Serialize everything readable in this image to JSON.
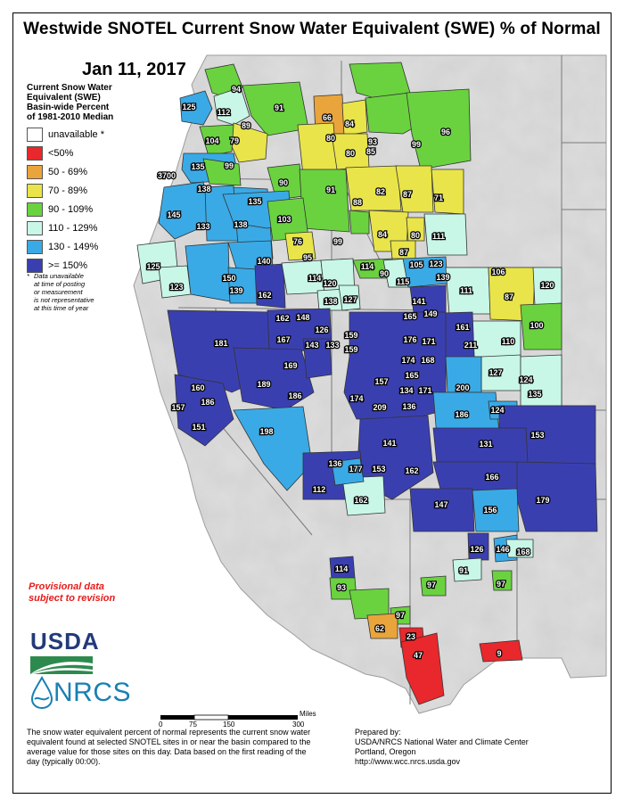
{
  "title": "Westwide SNOTEL Current Snow Water Equivalent (SWE) % of Normal",
  "date": "Jan 11, 2017",
  "legend": {
    "title_lines": [
      "Current Snow Water",
      "Equivalent (SWE)",
      "Basin-wide Percent",
      "of 1981-2010 Median"
    ],
    "items": [
      {
        "label": "unavailable *",
        "color": "#ffffff"
      },
      {
        "label": "<50%",
        "color": "#e8282c"
      },
      {
        "label": "50 - 69%",
        "color": "#e9a43c"
      },
      {
        "label": "70 - 89%",
        "color": "#e9e44a"
      },
      {
        "label": "90 - 109%",
        "color": "#6ad23f"
      },
      {
        "label": "110 - 129%",
        "color": "#c8f7e8"
      },
      {
        "label": "130 - 149%",
        "color": "#3aaae6"
      },
      {
        "label": ">= 150%",
        "color": "#3a3fb0"
      }
    ],
    "note_star": "*",
    "note_lines": [
      "Data unavailable",
      "at time of posting",
      "or measurement",
      "is not representative",
      "at this time of year"
    ]
  },
  "provisional": [
    "Provisional data",
    "subject to revision"
  ],
  "logos": {
    "usda": "USDA",
    "nrcs": "NRCS"
  },
  "scale": {
    "ticks": [
      "0",
      "75",
      "150",
      "300"
    ],
    "unit": "Miles"
  },
  "footnote": "The snow water equivalent percent of normal represents the current snow water equivalent found at selected SNOTEL sites in or near the basin compared to the average value for those sites on this day. Data based on the first reading of the day (typically 00:00).",
  "prepared_by": [
    "Prepared by:",
    "USDA/NRCS National Water and Climate Center",
    "Portland, Oregon",
    "http://www.wcc.nrcs.usda.gov"
  ],
  "basin_values": [
    "125",
    "94",
    "112",
    "91",
    "66",
    "84",
    "96",
    "89",
    "80",
    "104",
    "79",
    "93",
    "99",
    "80",
    "85",
    "3700",
    "135",
    "99",
    "90",
    "91",
    "82",
    "87",
    "71",
    "138",
    "135",
    "145",
    "133",
    "138",
    "103",
    "88",
    "84",
    "80",
    "111",
    "76",
    "99",
    "87",
    "125",
    "95",
    "114",
    "105",
    "123",
    "106",
    "120",
    "123",
    "150",
    "140",
    "114",
    "120",
    "90",
    "115",
    "139",
    "111",
    "87",
    "139",
    "162",
    "138",
    "127",
    "141",
    "162",
    "148",
    "165",
    "149",
    "161",
    "100",
    "126",
    "159",
    "181",
    "167",
    "143",
    "133",
    "176",
    "171",
    "211",
    "110",
    "159",
    "174",
    "168",
    "169",
    "165",
    "127",
    "124",
    "157",
    "134",
    "200",
    "160",
    "189",
    "186",
    "186",
    "157",
    "174",
    "171",
    "209",
    "136",
    "124",
    "135",
    "186",
    "151",
    "153",
    "131",
    "198",
    "141",
    "136",
    "177",
    "153",
    "162",
    "166",
    "112",
    "162",
    "147",
    "156",
    "179",
    "126",
    "146",
    "168",
    "114",
    "91",
    "97",
    "97",
    "93",
    "97",
    "62",
    "27",
    "23",
    "47",
    "9"
  ],
  "basin_colors": {
    "very_high": "#3a3fb0",
    "high": "#3aaae6",
    "above": "#c8f7e8",
    "near": "#6ad23f",
    "below": "#e9e44a",
    "low": "#e9a43c",
    "very_low": "#e8282c",
    "land": "#d9d9d9"
  }
}
